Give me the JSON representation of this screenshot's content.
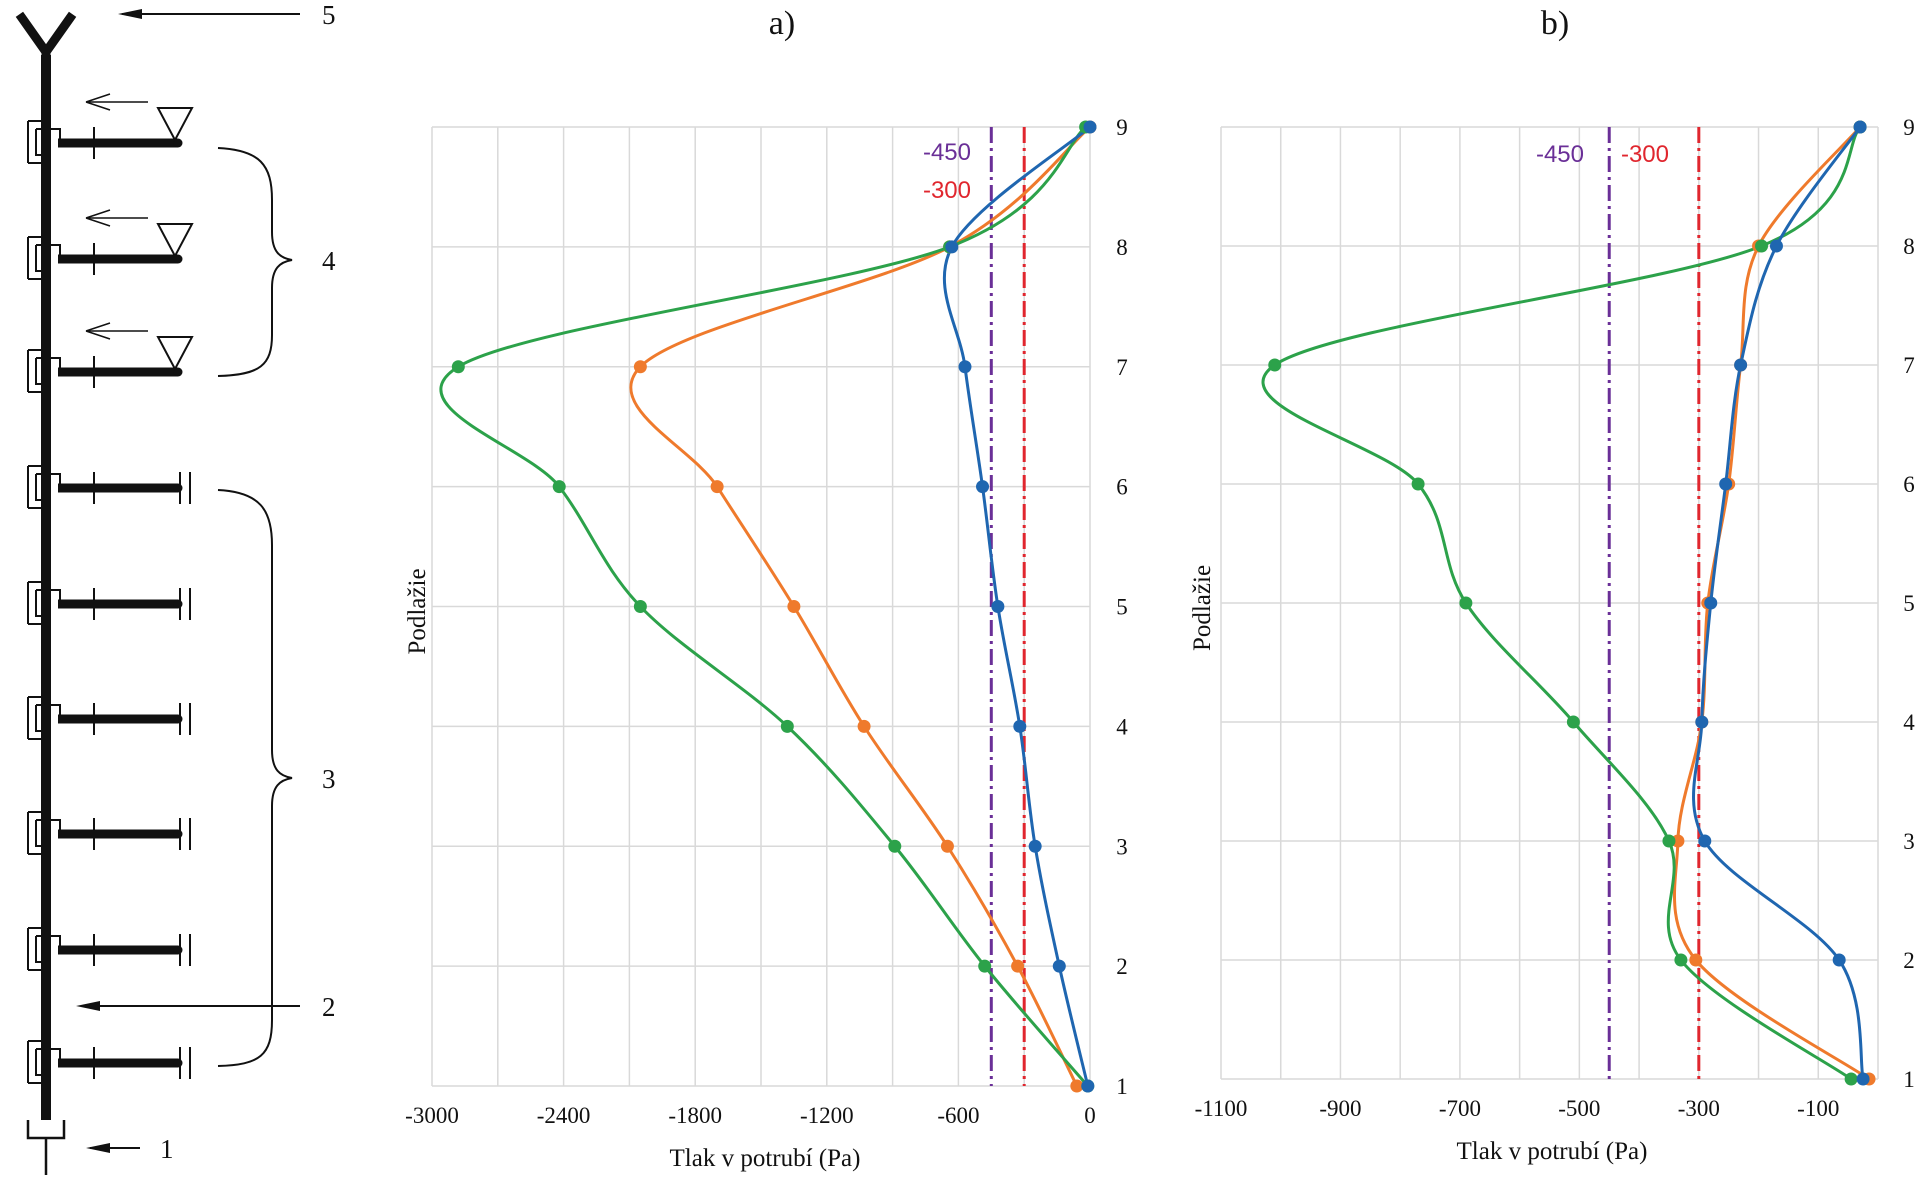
{
  "schematic": {
    "labels": [
      "1",
      "2",
      "3",
      "4",
      "5"
    ]
  },
  "chart_data": [
    {
      "type": "line",
      "title": "a)",
      "xlabel": "Tlak v potrubí (Pa)",
      "ylabel": "Podlažie",
      "xlim": [
        -3000,
        0
      ],
      "ylim": [
        1,
        9
      ],
      "x_ticks": [
        -3000,
        -2400,
        -1800,
        -1200,
        -600,
        0
      ],
      "x_tick_labels": [
        "-3000",
        "-2400",
        "-1800",
        "-1200",
        "-600",
        "0"
      ],
      "y_ticks": [
        1,
        2,
        3,
        4,
        5,
        6,
        7,
        8,
        9
      ],
      "y_tick_labels": [
        "1",
        "2",
        "3",
        "4",
        "5",
        "6",
        "7",
        "8",
        "9"
      ],
      "x_grid_values": [
        -3000,
        -2700,
        -2400,
        -2100,
        -1800,
        -1500,
        -1200,
        -900,
        -600,
        -300,
        0
      ],
      "grid": true,
      "series": [
        {
          "color": "#1f66b0",
          "y": [
            1,
            2,
            3,
            4,
            5,
            6,
            7,
            8,
            9
          ],
          "x": [
            -10,
            -140,
            -250,
            -320,
            -420,
            -490,
            -570,
            -630,
            0
          ]
        },
        {
          "color": "#ef7a2c",
          "y": [
            1,
            2,
            3,
            4,
            5,
            6,
            7,
            8,
            9
          ],
          "x": [
            -60,
            -330,
            -650,
            -1030,
            -1350,
            -1700,
            -2050,
            -640,
            0
          ]
        },
        {
          "color": "#2ca24a",
          "y": [
            1,
            2,
            3,
            4,
            5,
            6,
            7,
            8,
            9
          ],
          "x": [
            -10,
            -480,
            -890,
            -1380,
            -2050,
            -2420,
            -2880,
            -640,
            -20
          ]
        }
      ],
      "reference_lines": [
        {
          "label": "-450",
          "x": -450,
          "color": "#6a2f97"
        },
        {
          "label": "-300",
          "x": -300,
          "color": "#e0262e"
        }
      ]
    },
    {
      "type": "line",
      "title": "b)",
      "xlabel": "Tlak v potrubí (Pa)",
      "ylabel": "Podlažie",
      "xlim": [
        -1100,
        0
      ],
      "ylim": [
        1,
        9
      ],
      "x_ticks": [
        -1100,
        -900,
        -700,
        -500,
        -300,
        -100
      ],
      "x_tick_labels": [
        "-1100",
        "-900",
        "-700",
        "-500",
        "-300",
        "-100"
      ],
      "y_ticks": [
        1,
        2,
        3,
        4,
        5,
        6,
        7,
        8,
        9
      ],
      "y_tick_labels": [
        "1",
        "2",
        "3",
        "4",
        "5",
        "6",
        "7",
        "8",
        "9"
      ],
      "x_grid_values": [
        -1100,
        -1000,
        -900,
        -800,
        -700,
        -600,
        -500,
        -400,
        -300,
        -200,
        -100,
        0
      ],
      "grid": true,
      "series": [
        {
          "color": "#1f66b0",
          "y": [
            1,
            2,
            3,
            4,
            5,
            6,
            7,
            8,
            9
          ],
          "x": [
            -25,
            -65,
            -290,
            -295,
            -280,
            -255,
            -230,
            -170,
            -30
          ]
        },
        {
          "color": "#ef7a2c",
          "y": [
            1,
            2,
            3,
            4,
            5,
            6,
            7,
            8,
            9
          ],
          "x": [
            -15,
            -305,
            -335,
            -295,
            -285,
            -250,
            -230,
            -200,
            -30
          ]
        },
        {
          "color": "#2ca24a",
          "y": [
            1,
            2,
            3,
            4,
            5,
            6,
            7,
            8,
            9
          ],
          "x": [
            -45,
            -330,
            -350,
            -510,
            -690,
            -770,
            -1010,
            -195,
            -30
          ]
        }
      ],
      "reference_lines": [
        {
          "label": "-450",
          "x": -450,
          "color": "#6a2f97"
        },
        {
          "label": "-300",
          "x": -300,
          "color": "#e0262e"
        }
      ]
    }
  ]
}
